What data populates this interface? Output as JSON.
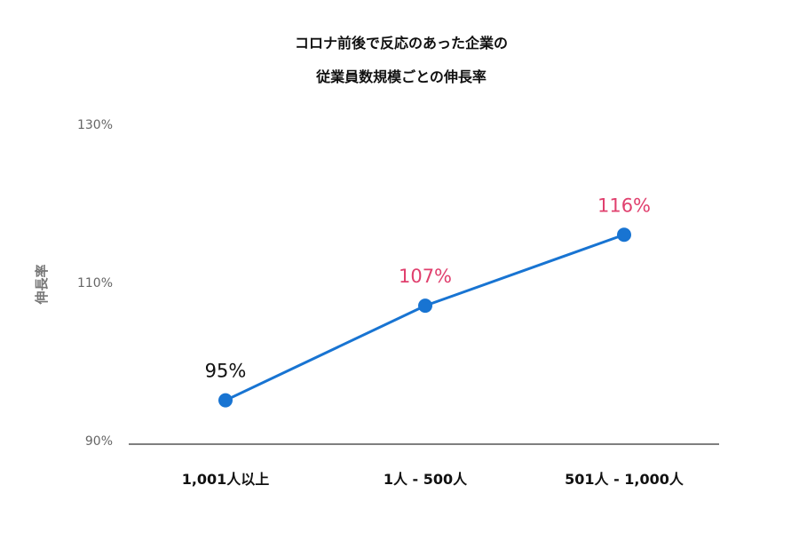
{
  "chart_data": {
    "type": "line",
    "title_lines": [
      "コロナ前後で反応のあった企業の",
      "従業員数規模ごとの伸長率"
    ],
    "ylabel": "伸長率",
    "y_ticks": [
      90,
      110,
      130
    ],
    "y_tick_labels": [
      "90%",
      "110%",
      "130%"
    ],
    "ylim": [
      90,
      130
    ],
    "grid": false,
    "categories": [
      "1,001人以上",
      "1人 - 500人",
      "501人 - 1,000人"
    ],
    "series": [
      {
        "values": [
          95,
          107,
          116
        ],
        "data_labels": [
          "95%",
          "107%",
          "116%"
        ],
        "line_color": "#1874d2",
        "label_colors": [
          "#111111",
          "#e0406e",
          "#e0406e"
        ]
      }
    ],
    "colors": {
      "axis": "#555555",
      "title": "#111111",
      "tick_label": "#666666",
      "ylabel": "#777777",
      "category_label": "#111111"
    }
  }
}
